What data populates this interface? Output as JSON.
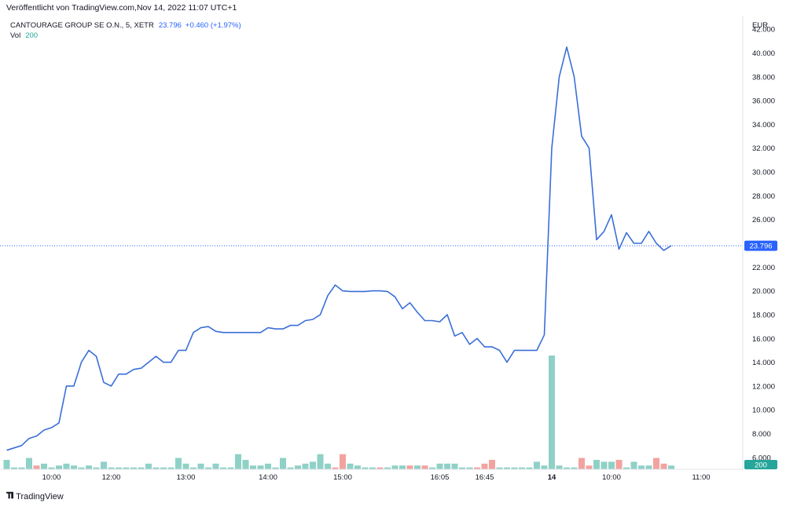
{
  "header": {
    "published": "Veröffentlicht von TradingView.com,Nov 14, 2022 11:07 UTC+1"
  },
  "legend": {
    "symbol": "CANTOURAGE GROUP SE O.N., 5, XETR",
    "last": "23.796",
    "change": "+0.460 (+1.97%)",
    "volume_label": "Vol",
    "volume_value": "200"
  },
  "footer": {
    "brand": "TradingView"
  },
  "colors": {
    "line": "#3a6fd8",
    "up_volume": "#8fd1c6",
    "down_volume": "#f2a3a0",
    "price_tag": "#2962ff",
    "vol_tag": "#26a69a"
  },
  "chart_data": {
    "type": "line",
    "currency": "EUR",
    "ylim": [
      5,
      43
    ],
    "y_ticks": [
      "6.000",
      "8.000",
      "10.000",
      "12.000",
      "14.000",
      "16.000",
      "18.000",
      "20.000",
      "22.000",
      "24.000",
      "26.000",
      "28.000",
      "30.000",
      "32.000",
      "34.000",
      "36.000",
      "38.000",
      "40.000",
      "42.000"
    ],
    "x_tick_labels": [
      {
        "label": "10:00",
        "index": 6
      },
      {
        "label": "12:00",
        "index": 14
      },
      {
        "label": "13:00",
        "index": 24
      },
      {
        "label": "14:00",
        "index": 35
      },
      {
        "label": "15:00",
        "index": 45
      },
      {
        "label": "16:05",
        "index": 58
      },
      {
        "label": "16:45",
        "index": 64
      },
      {
        "label": "14",
        "index": 73,
        "bold": true
      },
      {
        "label": "10:00",
        "index": 81
      },
      {
        "label": "11:00",
        "index": 93
      }
    ],
    "last_price": 23.796,
    "last_price_label": "23.796",
    "volume_last_label": "200",
    "price": [
      6.6,
      6.8,
      7.0,
      7.6,
      7.8,
      8.3,
      8.5,
      8.9,
      12.0,
      12.0,
      14.0,
      15.0,
      14.5,
      12.3,
      12.0,
      13.0,
      13.0,
      13.4,
      13.5,
      14.0,
      14.5,
      14.0,
      14.0,
      15.0,
      15.0,
      16.5,
      16.9,
      17.0,
      16.6,
      16.5,
      16.5,
      16.5,
      16.5,
      16.5,
      16.5,
      16.9,
      16.8,
      16.8,
      17.1,
      17.1,
      17.5,
      17.6,
      18.0,
      19.6,
      20.5,
      20.0,
      19.95,
      19.95,
      19.95,
      20.0,
      20.0,
      19.95,
      19.5,
      18.5,
      19.0,
      18.2,
      17.5,
      17.5,
      17.4,
      18.0,
      16.2,
      16.5,
      15.5,
      16.0,
      15.3,
      15.3,
      15.0,
      14.0,
      15.0,
      15.0,
      15.0,
      15.0,
      16.3,
      32.0,
      38.0,
      40.5,
      38.0,
      33.0,
      32.0,
      24.3,
      25.0,
      26.4,
      23.5,
      24.9,
      24.0,
      24.0,
      25.0,
      24.0,
      23.4,
      23.8
    ],
    "volume": [
      {
        "v": 5,
        "up": true
      },
      {
        "v": 1,
        "up": true
      },
      {
        "v": 1,
        "up": true
      },
      {
        "v": 6,
        "up": true
      },
      {
        "v": 2,
        "up": false
      },
      {
        "v": 3,
        "up": true
      },
      {
        "v": 1,
        "up": true
      },
      {
        "v": 2,
        "up": true
      },
      {
        "v": 3,
        "up": true
      },
      {
        "v": 2,
        "up": true
      },
      {
        "v": 1,
        "up": true
      },
      {
        "v": 2,
        "up": true
      },
      {
        "v": 1,
        "up": true
      },
      {
        "v": 4,
        "up": true
      },
      {
        "v": 1,
        "up": true
      },
      {
        "v": 1,
        "up": true
      },
      {
        "v": 1,
        "up": true
      },
      {
        "v": 1,
        "up": true
      },
      {
        "v": 1,
        "up": true
      },
      {
        "v": 3,
        "up": true
      },
      {
        "v": 1,
        "up": true
      },
      {
        "v": 1,
        "up": true
      },
      {
        "v": 1,
        "up": true
      },
      {
        "v": 6,
        "up": true
      },
      {
        "v": 3,
        "up": true
      },
      {
        "v": 1,
        "up": true
      },
      {
        "v": 3,
        "up": true
      },
      {
        "v": 1,
        "up": true
      },
      {
        "v": 3,
        "up": true
      },
      {
        "v": 1,
        "up": true
      },
      {
        "v": 1,
        "up": true
      },
      {
        "v": 8,
        "up": true
      },
      {
        "v": 5,
        "up": true
      },
      {
        "v": 2,
        "up": true
      },
      {
        "v": 2,
        "up": true
      },
      {
        "v": 3,
        "up": true
      },
      {
        "v": 1,
        "up": true
      },
      {
        "v": 6,
        "up": true
      },
      {
        "v": 1,
        "up": true
      },
      {
        "v": 2,
        "up": true
      },
      {
        "v": 3,
        "up": true
      },
      {
        "v": 4,
        "up": true
      },
      {
        "v": 8,
        "up": true
      },
      {
        "v": 3,
        "up": true
      },
      {
        "v": 1,
        "up": false
      },
      {
        "v": 8,
        "up": false
      },
      {
        "v": 3,
        "up": true
      },
      {
        "v": 2,
        "up": true
      },
      {
        "v": 1,
        "up": true
      },
      {
        "v": 1,
        "up": true
      },
      {
        "v": 1,
        "up": false
      },
      {
        "v": 1,
        "up": true
      },
      {
        "v": 2,
        "up": true
      },
      {
        "v": 2,
        "up": true
      },
      {
        "v": 2,
        "up": false
      },
      {
        "v": 2,
        "up": true
      },
      {
        "v": 2,
        "up": false
      },
      {
        "v": 1,
        "up": true
      },
      {
        "v": 3,
        "up": true
      },
      {
        "v": 3,
        "up": true
      },
      {
        "v": 3,
        "up": true
      },
      {
        "v": 1,
        "up": true
      },
      {
        "v": 1,
        "up": true
      },
      {
        "v": 1,
        "up": false
      },
      {
        "v": 3,
        "up": false
      },
      {
        "v": 5,
        "up": false
      },
      {
        "v": 1,
        "up": true
      },
      {
        "v": 1,
        "up": true
      },
      {
        "v": 1,
        "up": true
      },
      {
        "v": 1,
        "up": true
      },
      {
        "v": 1,
        "up": true
      },
      {
        "v": 4,
        "up": true
      },
      {
        "v": 2,
        "up": true
      },
      {
        "v": 60,
        "up": true
      },
      {
        "v": 2,
        "up": true
      },
      {
        "v": 1,
        "up": true
      },
      {
        "v": 1,
        "up": true
      },
      {
        "v": 6,
        "up": false
      },
      {
        "v": 2,
        "up": false
      },
      {
        "v": 5,
        "up": true
      },
      {
        "v": 4,
        "up": true
      },
      {
        "v": 4,
        "up": true
      },
      {
        "v": 5,
        "up": false
      },
      {
        "v": 1,
        "up": true
      },
      {
        "v": 4,
        "up": true
      },
      {
        "v": 2,
        "up": true
      },
      {
        "v": 2,
        "up": true
      },
      {
        "v": 6,
        "up": false
      },
      {
        "v": 3,
        "up": false
      },
      {
        "v": 2,
        "up": true
      }
    ]
  }
}
